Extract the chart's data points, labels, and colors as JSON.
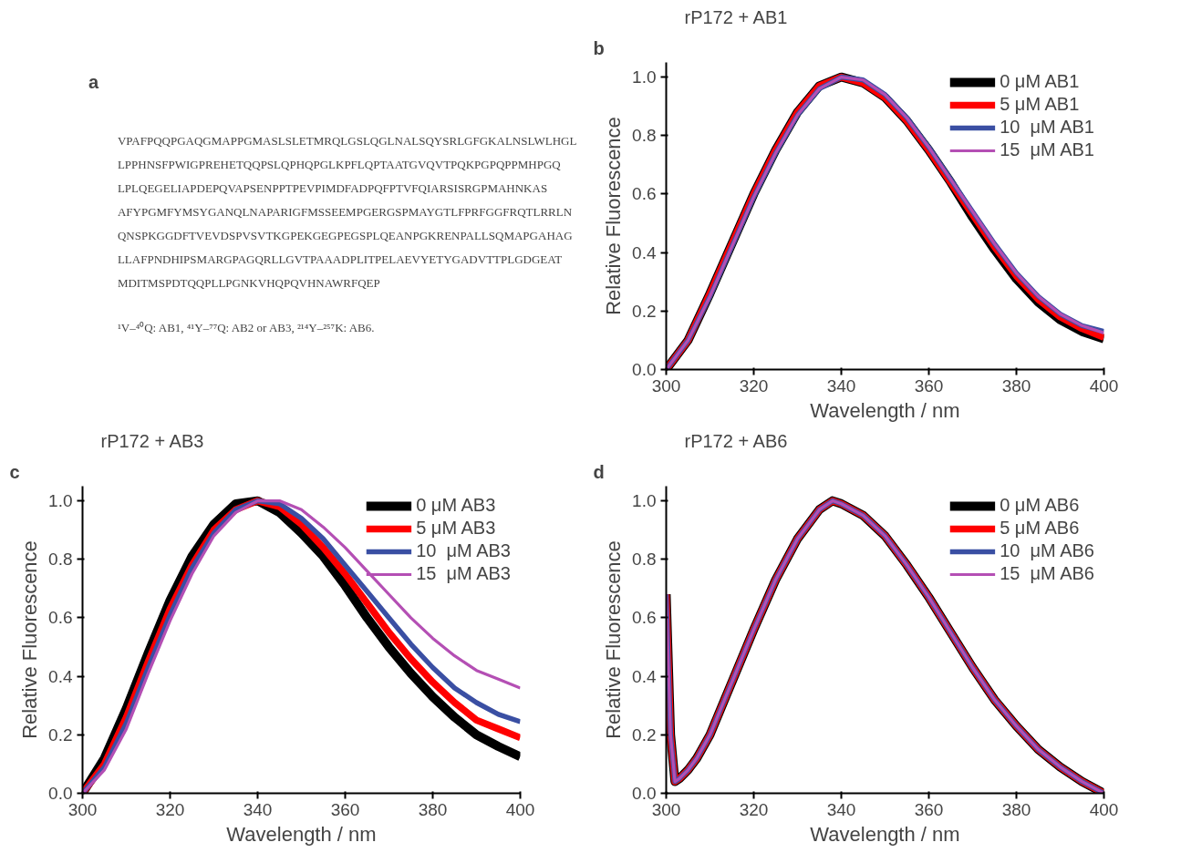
{
  "chart_data": [
    {
      "type": "other",
      "annotations": [
        "a",
        "VPAFPQQPGAQGMAPPGMASLSLETMRQLGSLQGLNALSQYSRLGFGKALNSLWLHGL",
        "LPPHNSFPWIGPREHETQQPSLQPHQPGLKPFLQPTAATGVQVTPQKPGPQPPMHPGQ",
        "LPLQEGELIAPDEPQVAPSENPPTPEVPIMDFADPQFPTVFQIARSISRGPMAHNKAS",
        "AFYPGMFYMSYGANQLNAPARIGFMSSEEMPGERGSPMAYGTLFPRFGGFRQTLRRLN",
        "QNSPKGGDFTVEVDSPVSVTKGPEKGEGPEGSPLQEANPGKRENPALLSQMAPGAHAG",
        "LLAFPNDHIPSMARGPAGQRLLGVTPAAADPLITPELAEVYETYGADVTTPLGDGEAT",
        "MDITMSPDTQQPLLPGNKVHQPQVHNAWRFQEP",
        "¹V–⁴⁰Q: AB1, ⁴¹Y–⁷⁷Q: AB2 or AB3, ²¹⁴Y–²⁵⁷K: AB6."
      ]
    },
    {
      "type": "line",
      "title": "rP172 + AB1",
      "annotations": [
        "b"
      ],
      "xlabel": "Wavelength / nm",
      "ylabel": "Relative Fluorescence",
      "x": [
        300,
        305,
        310,
        315,
        320,
        325,
        330,
        335,
        340,
        345,
        350,
        355,
        360,
        365,
        370,
        375,
        380,
        385,
        390,
        395,
        400
      ],
      "xlim": [
        300,
        400
      ],
      "xticks": [
        300,
        320,
        340,
        360,
        380,
        400
      ],
      "ylim": [
        0,
        1.05
      ],
      "yticks": [
        {
          "value": 0,
          "label": "0.0"
        },
        {
          "value": 0.2,
          "label": "0.2"
        },
        {
          "value": 0.4,
          "label": "0.4"
        },
        {
          "value": 0.6,
          "label": "0.6"
        },
        {
          "value": 0.8,
          "label": "0.8"
        },
        {
          "value": 1,
          "label": "1.0"
        }
      ],
      "legend": "top right",
      "grid": false,
      "line_style": "solid",
      "marker": "none",
      "series": [
        {
          "name": "0 μM AB1",
          "color": "#000000",
          "values": [
            0,
            0.1,
            0.26,
            0.43,
            0.6,
            0.75,
            0.88,
            0.97,
            1.0,
            0.98,
            0.93,
            0.85,
            0.75,
            0.64,
            0.52,
            0.41,
            0.31,
            0.23,
            0.17,
            0.13,
            0.105
          ]
        },
        {
          "name": "5 μM AB1",
          "color": "#ff0000",
          "values": [
            0,
            0.1,
            0.26,
            0.43,
            0.6,
            0.75,
            0.88,
            0.97,
            1.0,
            0.98,
            0.93,
            0.85,
            0.75,
            0.64,
            0.53,
            0.42,
            0.32,
            0.24,
            0.18,
            0.14,
            0.11
          ]
        },
        {
          "name": "10  μM AB1",
          "color": "#3a4fa3",
          "values": [
            0,
            0.1,
            0.25,
            0.42,
            0.59,
            0.74,
            0.87,
            0.96,
            1.0,
            0.99,
            0.94,
            0.86,
            0.76,
            0.65,
            0.54,
            0.43,
            0.33,
            0.25,
            0.19,
            0.15,
            0.13
          ]
        },
        {
          "name": "15  μM AB1",
          "color": "#b44fb4",
          "values": [
            0,
            0.1,
            0.25,
            0.42,
            0.59,
            0.74,
            0.87,
            0.96,
            1.0,
            0.99,
            0.94,
            0.86,
            0.76,
            0.65,
            0.54,
            0.43,
            0.33,
            0.25,
            0.19,
            0.15,
            0.125
          ]
        }
      ]
    },
    {
      "type": "line",
      "title": "rP172 + AB3",
      "annotations": [
        "c"
      ],
      "xlabel": "Wavelength / nm",
      "ylabel": "Relative Fluorescence",
      "x": [
        300,
        305,
        310,
        315,
        320,
        325,
        330,
        335,
        340,
        345,
        350,
        355,
        360,
        365,
        370,
        375,
        380,
        385,
        390,
        395,
        400
      ],
      "xlim": [
        300,
        400
      ],
      "xticks": [
        300,
        320,
        340,
        360,
        380,
        400
      ],
      "ylim": [
        0,
        1.05
      ],
      "yticks": [
        {
          "value": 0,
          "label": "0.0"
        },
        {
          "value": 0.2,
          "label": "0.2"
        },
        {
          "value": 0.4,
          "label": "0.4"
        },
        {
          "value": 0.6,
          "label": "0.6"
        },
        {
          "value": 0.8,
          "label": "0.8"
        },
        {
          "value": 1,
          "label": "1.0"
        }
      ],
      "legend": "top right",
      "grid": false,
      "line_style": "solid",
      "marker": "none",
      "series": [
        {
          "name": "0 μM AB3",
          "color": "#000000",
          "values": [
            0,
            0.12,
            0.29,
            0.48,
            0.66,
            0.81,
            0.92,
            0.99,
            1.0,
            0.96,
            0.89,
            0.81,
            0.71,
            0.6,
            0.5,
            0.41,
            0.33,
            0.26,
            0.2,
            0.16,
            0.125
          ]
        },
        {
          "name": "5 μM AB3",
          "color": "#ff0000",
          "values": [
            0,
            0.1,
            0.26,
            0.45,
            0.63,
            0.78,
            0.9,
            0.97,
            1.0,
            0.98,
            0.92,
            0.84,
            0.75,
            0.65,
            0.55,
            0.46,
            0.38,
            0.31,
            0.25,
            0.22,
            0.19
          ]
        },
        {
          "name": "10  μM AB3",
          "color": "#3a4fa3",
          "values": [
            0,
            0.09,
            0.24,
            0.43,
            0.61,
            0.77,
            0.89,
            0.97,
            1.0,
            0.99,
            0.94,
            0.87,
            0.78,
            0.69,
            0.6,
            0.51,
            0.43,
            0.36,
            0.31,
            0.27,
            0.245
          ]
        },
        {
          "name": "15  μM AB3",
          "color": "#b44fb4",
          "values": [
            0,
            0.08,
            0.22,
            0.41,
            0.59,
            0.75,
            0.88,
            0.96,
            1.0,
            1.0,
            0.97,
            0.91,
            0.84,
            0.76,
            0.68,
            0.6,
            0.53,
            0.47,
            0.42,
            0.39,
            0.36
          ]
        }
      ]
    },
    {
      "type": "line",
      "title": "rP172 + AB6",
      "annotations": [
        "d"
      ],
      "xlabel": "Wavelength / nm",
      "ylabel": "Relative Fluorescence",
      "x": [
        300,
        301,
        302,
        303,
        305,
        307,
        310,
        315,
        320,
        325,
        330,
        335,
        338,
        340,
        345,
        350,
        355,
        360,
        365,
        370,
        375,
        380,
        385,
        390,
        395,
        400
      ],
      "xlim": [
        300,
        400
      ],
      "xticks": [
        300,
        320,
        340,
        360,
        380,
        400
      ],
      "ylim": [
        0,
        1.05
      ],
      "yticks": [
        {
          "value": 0,
          "label": "0.0"
        },
        {
          "value": 0.2,
          "label": "0.2"
        },
        {
          "value": 0.4,
          "label": "0.4"
        },
        {
          "value": 0.6,
          "label": "0.6"
        },
        {
          "value": 0.8,
          "label": "0.8"
        },
        {
          "value": 1,
          "label": "1.0"
        }
      ],
      "legend": "top right",
      "grid": false,
      "line_style": "solid",
      "marker": "none",
      "series": [
        {
          "name": "0 μM AB6",
          "color": "#000000",
          "values": [
            0.68,
            0.2,
            0.04,
            0.05,
            0.08,
            0.12,
            0.2,
            0.38,
            0.56,
            0.73,
            0.87,
            0.97,
            1.0,
            0.99,
            0.95,
            0.88,
            0.78,
            0.67,
            0.55,
            0.43,
            0.32,
            0.23,
            0.15,
            0.09,
            0.04,
            0.0
          ]
        },
        {
          "name": "5 μM AB6",
          "color": "#ff0000",
          "values": [
            0.68,
            0.2,
            0.04,
            0.05,
            0.08,
            0.12,
            0.2,
            0.38,
            0.56,
            0.73,
            0.87,
            0.97,
            1.0,
            0.99,
            0.95,
            0.88,
            0.78,
            0.67,
            0.55,
            0.43,
            0.32,
            0.23,
            0.15,
            0.09,
            0.04,
            0.0
          ]
        },
        {
          "name": "10  μM AB6",
          "color": "#3a4fa3",
          "values": [
            0.68,
            0.2,
            0.04,
            0.05,
            0.08,
            0.12,
            0.2,
            0.38,
            0.56,
            0.73,
            0.87,
            0.97,
            1.0,
            0.99,
            0.95,
            0.88,
            0.78,
            0.67,
            0.55,
            0.43,
            0.32,
            0.23,
            0.15,
            0.09,
            0.04,
            0.0
          ]
        },
        {
          "name": "15  μM AB6",
          "color": "#b44fb4",
          "values": [
            0.68,
            0.2,
            0.04,
            0.05,
            0.08,
            0.12,
            0.2,
            0.38,
            0.56,
            0.73,
            0.87,
            0.97,
            1.0,
            0.99,
            0.95,
            0.88,
            0.78,
            0.67,
            0.55,
            0.43,
            0.32,
            0.23,
            0.15,
            0.09,
            0.04,
            0.0
          ]
        }
      ]
    }
  ]
}
